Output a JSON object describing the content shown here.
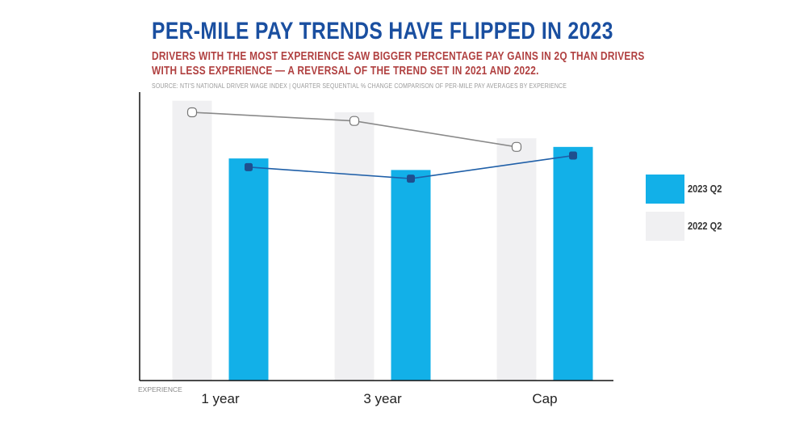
{
  "title": "PER-MILE PAY TRENDS HAVE FLIPPED IN 2023",
  "subtitle_line1": "DRIVERS WITH THE MOST EXPERIENCE SAW BIGGER PERCENTAGE PAY GAINS IN 2Q THAN DRIVERS",
  "subtitle_line2": "WITH LESS EXPERIENCE — A REVERSAL OF THE TREND SET IN 2021 AND 2022.",
  "source": "SOURCE: NTI'S NATIONAL DRIVER WAGE INDEX | QUARTER SEQUENTIAL % CHANGE COMPARISON OF PER-MILE PAY AVERAGES BY EXPERIENCE",
  "colors": {
    "series_2023": "#12b0e8",
    "series_2022": "#f0f0f2",
    "line_2023": "#1f5fa8",
    "line_2022": "#8a8a8a"
  },
  "chart_data": {
    "type": "bar",
    "categories": [
      "1 year",
      "3 year",
      "Cap"
    ],
    "xlabel": "EXPERIENCE",
    "ylabel": "",
    "ylim": [
      0,
      100
    ],
    "grid": false,
    "legend": "right",
    "series": [
      {
        "name": "2022 Q2",
        "values": [
          97,
          93,
          84
        ],
        "line_values": [
          93,
          90,
          81
        ]
      },
      {
        "name": "2023 Q2",
        "values": [
          77,
          73,
          81
        ],
        "line_values": [
          74,
          70,
          78
        ]
      }
    ]
  }
}
